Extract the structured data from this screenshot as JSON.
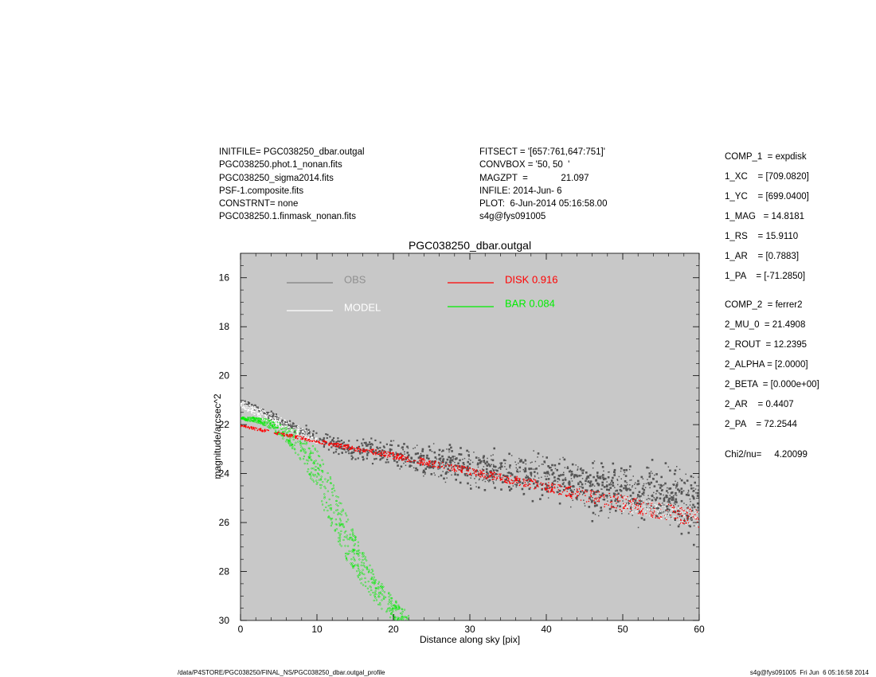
{
  "header": {
    "left_lines": [
      "INITFILE= PGC038250_dbar.outgal",
      "PGC038250.phot.1_nonan.fits",
      "PGC038250_sigma2014.fits",
      "PSF-1.composite.fits",
      "CONSTRNT= none",
      "PGC038250.1.finmask_nonan.fits"
    ],
    "mid_lines": [
      "FITSECT = '[657:761,647:751]'",
      "CONVBOX = '50, 50  '",
      "MAGZPT  =             21.097",
      "INFILE: 2014-Jun- 6",
      "PLOT:  6-Jun-2014 05:16:58.00",
      "s4g@fys091005"
    ]
  },
  "params": {
    "comp1": [
      "COMP_1  = expdisk",
      "1_XC    = [709.0820]",
      "1_YC    = [699.0400]",
      "1_MAG   = 14.8181",
      "1_RS    = 15.9110",
      "1_AR    = [0.7883]",
      "1_PA    = [-71.2850]"
    ],
    "comp2": [
      "COMP_2  = ferrer2",
      "2_MU_0  = 21.4908",
      "2_ROUT  = 12.2395",
      "2_ALPHA = [2.0000]",
      "2_BETA  = [0.000e+00]",
      "2_AR    = 0.4407",
      "2_PA    = 72.2544"
    ],
    "chi": "Chi2/nu=     4.20099"
  },
  "footer": {
    "left": "/data/P4STORE/PGC038250/FINAL_NS/PGC038250_dbar.outgal_profile",
    "right": "s4g@fys091005  Fri Jun  6 05:16:58 2014"
  },
  "chart_data": {
    "type": "scatter",
    "title": "PGC038250_dbar.outgal",
    "xlabel": "Distance along sky [pix]",
    "ylabel": "magnitude/arcsec^2",
    "xlim": [
      0,
      60
    ],
    "ylim": [
      30,
      15
    ],
    "x_ticks": [
      0,
      10,
      20,
      30,
      40,
      50,
      60
    ],
    "y_ticks": [
      16,
      18,
      20,
      22,
      24,
      26,
      28,
      30
    ],
    "y_inverted": true,
    "background_color": "#c8c8c8",
    "legend": [
      {
        "name": "OBS",
        "color": "#808080",
        "label_color": "#909090"
      },
      {
        "name": "MODEL",
        "color": "#ffffff",
        "label_color": "#ffffff"
      },
      {
        "name": "DISK",
        "value": "0.916",
        "color": "#ff0000"
      },
      {
        "name": "BAR",
        "value": "0.084",
        "color": "#00ee00"
      }
    ],
    "series": [
      {
        "name": "OBS",
        "kind": "points",
        "color": "#555555",
        "x": [
          0,
          2,
          4,
          6,
          8,
          10,
          12,
          15,
          20,
          25,
          30,
          35,
          40,
          45,
          50,
          55,
          60
        ],
        "y": [
          21.05,
          21.3,
          21.6,
          21.95,
          22.25,
          22.55,
          22.75,
          23.0,
          23.3,
          23.5,
          23.75,
          24.0,
          24.2,
          24.5,
          24.75,
          25.0,
          25.3
        ],
        "scatter_mag": [
          0.15,
          0.2,
          0.3,
          0.4,
          0.5,
          0.6,
          0.7,
          0.8,
          1.0,
          1.2,
          1.4,
          1.6,
          1.8,
          2.0,
          2.2,
          2.4,
          2.6
        ]
      },
      {
        "name": "MODEL",
        "kind": "band",
        "color": "#ffffff",
        "x": [
          0,
          4,
          8,
          10
        ],
        "y_upper": [
          21.0,
          21.5,
          22.1,
          22.5
        ],
        "y_lower": [
          21.3,
          21.95,
          22.6,
          22.8
        ]
      },
      {
        "name": "DISK",
        "kind": "band",
        "color": "#ff0000",
        "x": [
          0,
          10,
          20,
          30,
          40,
          50,
          60
        ],
        "y_upper": [
          22.0,
          22.6,
          23.15,
          23.75,
          24.35,
          24.9,
          25.5
        ],
        "y_lower": [
          22.1,
          22.75,
          23.4,
          24.05,
          24.75,
          25.55,
          26.2
        ]
      },
      {
        "name": "BAR",
        "kind": "band",
        "color": "#00ee00",
        "x": [
          0,
          2,
          4,
          6,
          8,
          10,
          12,
          14,
          16,
          18,
          20,
          22
        ],
        "y_upper": [
          21.7,
          21.7,
          21.8,
          22.0,
          22.4,
          23.0,
          24.3,
          25.8,
          27.2,
          28.3,
          29.1,
          29.7
        ],
        "y_lower": [
          21.8,
          21.9,
          22.2,
          22.7,
          23.5,
          24.8,
          26.3,
          27.6,
          28.6,
          29.4,
          30.0,
          30.4
        ]
      }
    ]
  }
}
